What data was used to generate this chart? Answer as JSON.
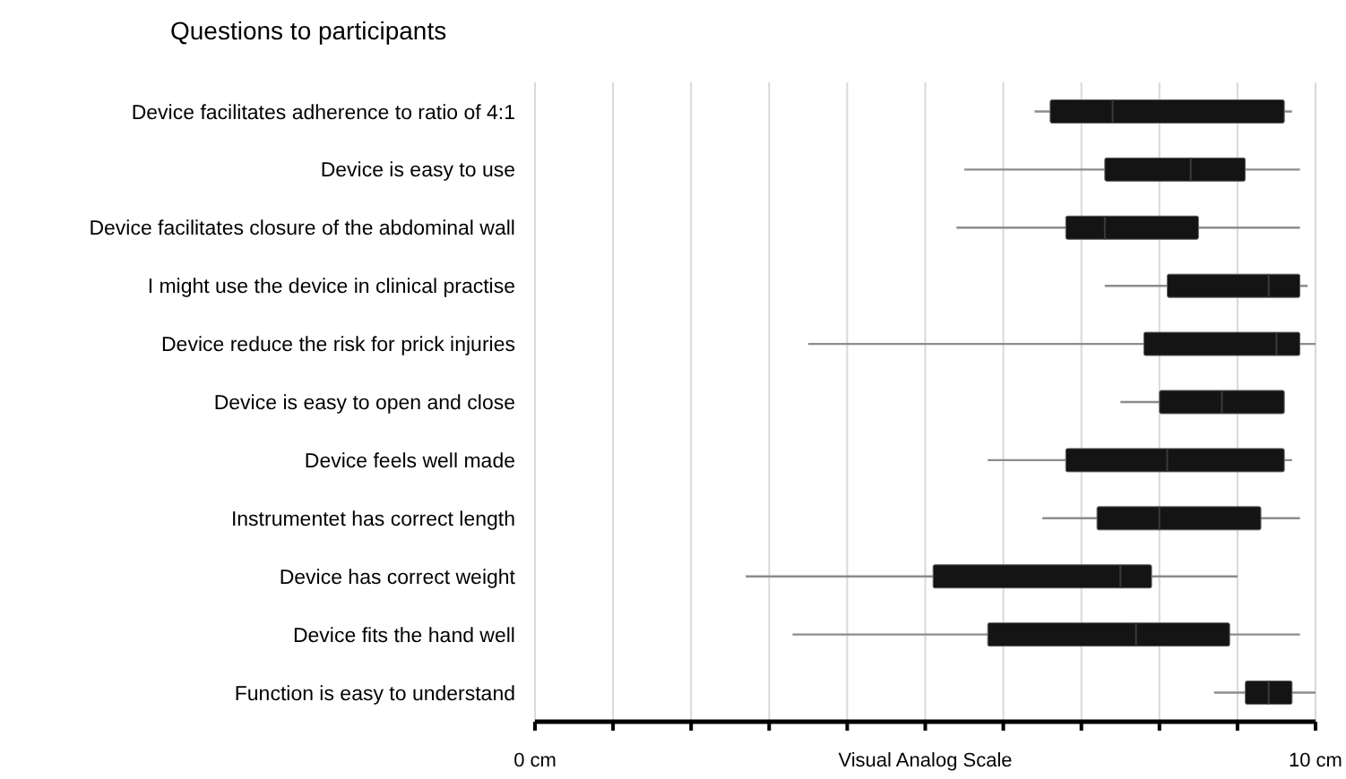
{
  "chart_data": {
    "type": "box",
    "orientation": "horizontal",
    "title": "Questions to participants",
    "xlabel": "Visual Analog Scale",
    "categories": [
      "Device facilitates adherence to ratio of 4:1",
      "Device is easy to use",
      "Device facilitates closure of the abdominal wall",
      "I might use the device in clinical practise",
      "Device reduce the risk for prick injuries",
      "Device is easy to open and close",
      "Device feels well made",
      "Instrumentet has correct length",
      "Device has correct weight",
      "Device fits the hand well",
      "Function is easy to understand"
    ],
    "boxes": [
      {
        "low": 6.4,
        "q1": 6.6,
        "median": 7.4,
        "q3": 9.6,
        "high": 9.7
      },
      {
        "low": 5.5,
        "q1": 7.3,
        "median": 8.4,
        "q3": 9.1,
        "high": 9.8
      },
      {
        "low": 5.4,
        "q1": 6.8,
        "median": 7.3,
        "q3": 8.5,
        "high": 9.8
      },
      {
        "low": 7.3,
        "q1": 8.1,
        "median": 9.4,
        "q3": 9.8,
        "high": 9.9
      },
      {
        "low": 3.5,
        "q1": 7.8,
        "median": 9.5,
        "q3": 9.8,
        "high": 10
      },
      {
        "low": 7.5,
        "q1": 8,
        "median": 8.8,
        "q3": 9.6,
        "high": 9.6
      },
      {
        "low": 5.8,
        "q1": 6.8,
        "median": 8.1,
        "q3": 9.6,
        "high": 9.7
      },
      {
        "low": 6.5,
        "q1": 7.2,
        "median": 8,
        "q3": 9.3,
        "high": 9.8
      },
      {
        "low": 2.7,
        "q1": 5.1,
        "median": 7.5,
        "q3": 7.9,
        "high": 9
      },
      {
        "low": 3.3,
        "q1": 5.8,
        "median": 7.7,
        "q3": 8.9,
        "high": 9.8
      },
      {
        "low": 8.7,
        "q1": 9.1,
        "median": 9.4,
        "q3": 9.7,
        "high": 10
      }
    ],
    "color": "#141414",
    "xlim": [
      0,
      10
    ],
    "xticks": [
      {
        "value": 0,
        "label": "0 cm"
      },
      {
        "value": 1,
        "label": null
      },
      {
        "value": 2,
        "label": null
      },
      {
        "value": 3,
        "label": null
      },
      {
        "value": 4,
        "label": null
      },
      {
        "value": 5,
        "label": null
      },
      {
        "value": 6,
        "label": null
      },
      {
        "value": 7,
        "label": null
      },
      {
        "value": 8,
        "label": null
      },
      {
        "value": 9,
        "label": null
      },
      {
        "value": 10,
        "label": "10 cm"
      }
    ],
    "grid": "x"
  }
}
